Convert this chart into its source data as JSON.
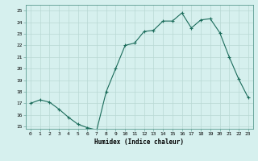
{
  "x": [
    0,
    1,
    2,
    3,
    4,
    5,
    6,
    7,
    8,
    9,
    10,
    11,
    12,
    13,
    14,
    15,
    16,
    17,
    18,
    19,
    20,
    21,
    22,
    23
  ],
  "y": [
    17.0,
    17.3,
    17.1,
    16.5,
    15.8,
    15.2,
    14.9,
    14.7,
    18.0,
    20.0,
    22.0,
    22.2,
    23.2,
    23.3,
    24.1,
    24.1,
    24.8,
    23.5,
    24.2,
    24.3,
    23.1,
    21.0,
    19.1,
    17.5
  ],
  "xlabel": "Humidex (Indice chaleur)",
  "xlim": [
    -0.5,
    23.5
  ],
  "ylim": [
    14.8,
    25.5
  ],
  "yticks": [
    15,
    16,
    17,
    18,
    19,
    20,
    21,
    22,
    23,
    24,
    25
  ],
  "xticks": [
    0,
    1,
    2,
    3,
    4,
    5,
    6,
    7,
    8,
    9,
    10,
    11,
    12,
    13,
    14,
    15,
    16,
    17,
    18,
    19,
    20,
    21,
    22,
    23
  ],
  "line_color": "#1a6b5a",
  "bg_color": "#d6f0ee",
  "grid_color": "#b8d8d4",
  "spine_color": "#5a9a90"
}
